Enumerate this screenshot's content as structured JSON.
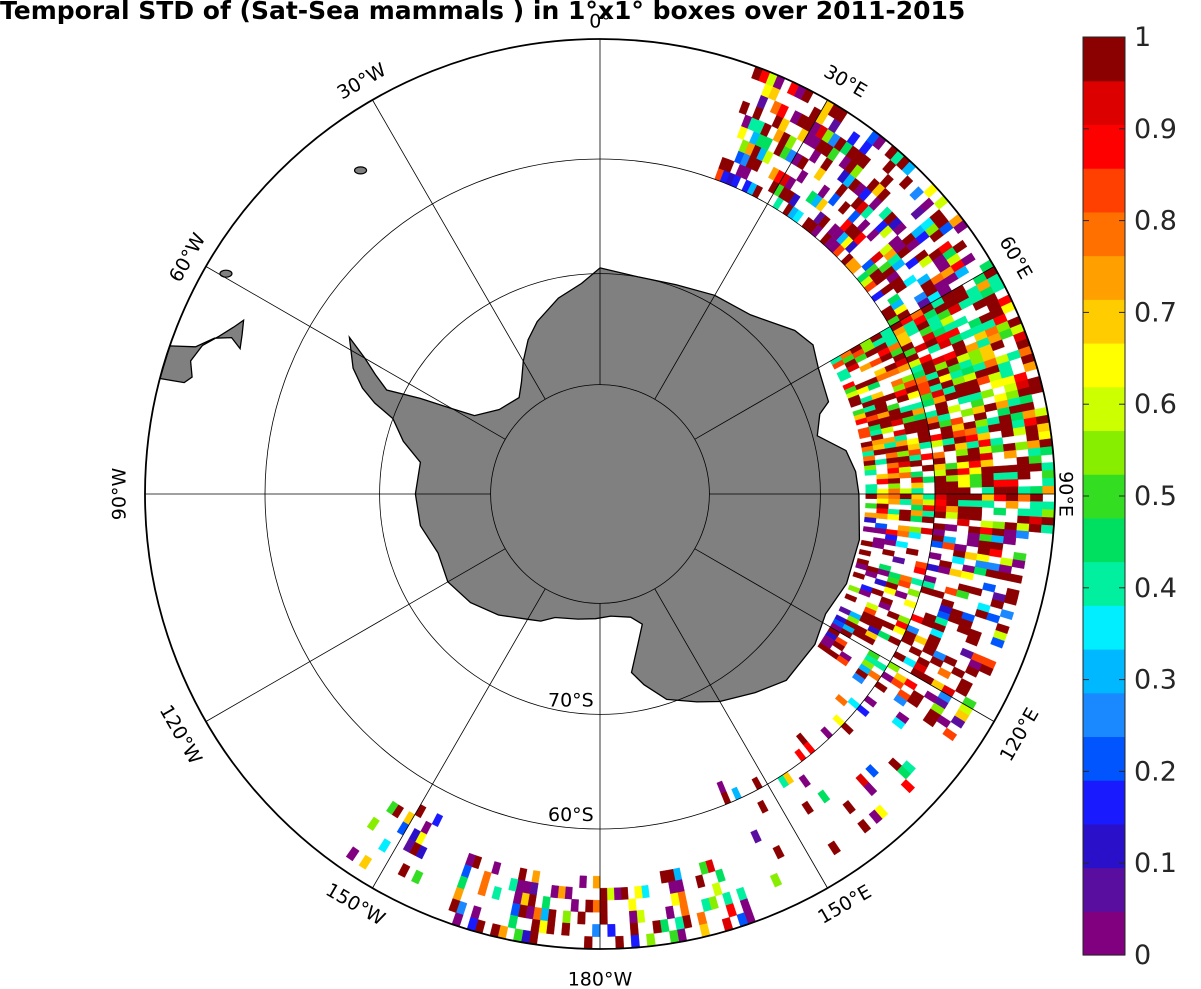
{
  "title": "Temporal STD of (Sat-Sea mammals ) in 1°x1° boxes over 2011-2015",
  "map": {
    "projection": "south-polar-stereographic",
    "center_lat": -90,
    "boundary_lat": -50,
    "land_color": "#808080",
    "graticule_color": "#000000",
    "lat_circles": [
      -80,
      -70,
      -60
    ],
    "lon_lines": [
      0,
      30,
      60,
      90,
      120,
      150,
      180,
      -150,
      -120,
      -90,
      -60,
      -30
    ],
    "lat_labels": [
      {
        "lat": -70,
        "label": "70°S"
      },
      {
        "lat": -60,
        "label": "60°S"
      }
    ],
    "lon_labels": [
      {
        "lon": 0,
        "label": "0°"
      },
      {
        "lon": 30,
        "label": "30°E"
      },
      {
        "lon": 60,
        "label": "60°E"
      },
      {
        "lon": 90,
        "label": "90°E"
      },
      {
        "lon": 120,
        "label": "120°E"
      },
      {
        "lon": 150,
        "label": "150°E"
      },
      {
        "lon": 180,
        "label": "180°W"
      },
      {
        "lon": -150,
        "label": "150°W"
      },
      {
        "lon": -120,
        "label": "120°W"
      },
      {
        "lon": -90,
        "label": "90°W"
      },
      {
        "lon": -60,
        "label": "60°W"
      },
      {
        "lon": -30,
        "label": "30°W"
      }
    ]
  },
  "colorbar": {
    "min": 0,
    "max": 1,
    "tick_labels": [
      "0",
      "0.1",
      "0.2",
      "0.3",
      "0.4",
      "0.5",
      "0.6",
      "0.7",
      "0.8",
      "0.9",
      "1"
    ],
    "colors": [
      "#800080",
      "#5a0ea0",
      "#2a10c8",
      "#1a1aff",
      "#0055ff",
      "#1a88ff",
      "#00b8ff",
      "#00eeff",
      "#00f0a0",
      "#00e060",
      "#33dd22",
      "#88ee00",
      "#ccff00",
      "#ffff00",
      "#ffcc00",
      "#ffa000",
      "#ff7000",
      "#ff4000",
      "#ff0000",
      "#dd0000",
      "#8b0000"
    ]
  },
  "chart_data": {
    "type": "heatmap",
    "title": "Temporal STD of (Sat-Sea mammals ) in 1°x1° boxes over 2011-2015",
    "value_range": [
      0,
      1
    ],
    "regions": [
      {
        "lon_range": [
          20,
          60
        ],
        "lat_range": [
          -60,
          -50
        ],
        "density": 0.55,
        "typical_value_range": [
          0,
          1
        ]
      },
      {
        "lon_range": [
          60,
          95
        ],
        "lat_range": [
          -66,
          -50
        ],
        "density": 0.8,
        "typical_value_range": [
          0.4,
          1
        ]
      },
      {
        "lon_range": [
          95,
          125
        ],
        "lat_range": [
          -66,
          -52
        ],
        "density": 0.55,
        "typical_value_range": [
          0,
          1
        ]
      },
      {
        "lon_range": [
          125,
          160
        ],
        "lat_range": [
          -62,
          -52
        ],
        "density": 0.12,
        "typical_value_range": [
          0,
          1
        ]
      },
      {
        "lon_range": [
          160,
          200
        ],
        "lat_range": [
          -56,
          -50
        ],
        "density": 0.4,
        "typical_value_range": [
          0,
          1
        ]
      },
      {
        "lon_range": [
          205,
          215
        ],
        "lat_range": [
          -58,
          -51
        ],
        "density": 0.2,
        "typical_value_range": [
          0,
          1
        ]
      }
    ]
  }
}
